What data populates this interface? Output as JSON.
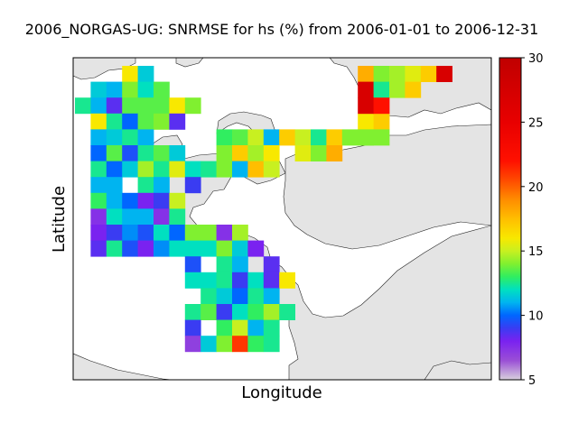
{
  "chart_data": {
    "type": "heatmap",
    "title": "2006_NORGAS-UG: SNRMSE for hs (%) from 2006-01-01 to 2006-12-31",
    "xlabel": "Longitude",
    "ylabel": "Latitude",
    "colorbar": {
      "min": 5,
      "max": 30,
      "ticks": [
        "5",
        "10",
        "15",
        "20",
        "25",
        "30"
      ]
    },
    "grid": {
      "cols": 25,
      "rows": 19,
      "cells": [
        {
          "c": 3,
          "r": 0,
          "v": 16
        },
        {
          "c": 4,
          "r": 0,
          "v": 11.5
        },
        {
          "c": 1,
          "r": 1,
          "v": 11.5
        },
        {
          "c": 2,
          "r": 1,
          "v": 11
        },
        {
          "c": 3,
          "r": 1,
          "v": 14
        },
        {
          "c": 4,
          "r": 1,
          "v": 12
        },
        {
          "c": 5,
          "r": 1,
          "v": 13.5
        },
        {
          "c": 0,
          "r": 2,
          "v": 12.5
        },
        {
          "c": 1,
          "r": 2,
          "v": 11
        },
        {
          "c": 2,
          "r": 2,
          "v": 8.5
        },
        {
          "c": 3,
          "r": 2,
          "v": 13.5
        },
        {
          "c": 4,
          "r": 2,
          "v": 13.5
        },
        {
          "c": 5,
          "r": 2,
          "v": 13.5
        },
        {
          "c": 6,
          "r": 2,
          "v": 16
        },
        {
          "c": 7,
          "r": 2,
          "v": 14
        },
        {
          "c": 1,
          "r": 3,
          "v": 16
        },
        {
          "c": 2,
          "r": 3,
          "v": 12.5
        },
        {
          "c": 3,
          "r": 3,
          "v": 10
        },
        {
          "c": 4,
          "r": 3,
          "v": 13.5
        },
        {
          "c": 5,
          "r": 3,
          "v": 14
        },
        {
          "c": 6,
          "r": 3,
          "v": 8.5
        },
        {
          "c": 1,
          "r": 4,
          "v": 11
        },
        {
          "c": 2,
          "r": 4,
          "v": 11.5
        },
        {
          "c": 3,
          "r": 4,
          "v": 12.5
        },
        {
          "c": 4,
          "r": 4,
          "v": 11
        },
        {
          "c": 9,
          "r": 4,
          "v": 13
        },
        {
          "c": 10,
          "r": 4,
          "v": 13.5
        },
        {
          "c": 11,
          "r": 4,
          "v": 15
        },
        {
          "c": 12,
          "r": 4,
          "v": 11
        },
        {
          "c": 13,
          "r": 4,
          "v": 17
        },
        {
          "c": 14,
          "r": 4,
          "v": 15
        },
        {
          "c": 15,
          "r": 4,
          "v": 12.5
        },
        {
          "c": 16,
          "r": 4,
          "v": 17
        },
        {
          "c": 17,
          "r": 4,
          "v": 14
        },
        {
          "c": 18,
          "r": 4,
          "v": 14
        },
        {
          "c": 1,
          "r": 5,
          "v": 10
        },
        {
          "c": 2,
          "r": 5,
          "v": 13.5
        },
        {
          "c": 3,
          "r": 5,
          "v": 9.5
        },
        {
          "c": 4,
          "r": 5,
          "v": 12.5
        },
        {
          "c": 5,
          "r": 5,
          "v": 13.5
        },
        {
          "c": 6,
          "r": 5,
          "v": 11.5
        },
        {
          "c": 9,
          "r": 5,
          "v": 14
        },
        {
          "c": 10,
          "r": 5,
          "v": 17
        },
        {
          "c": 11,
          "r": 5,
          "v": 14.5
        },
        {
          "c": 12,
          "r": 5,
          "v": 16
        },
        {
          "c": 14,
          "r": 5,
          "v": 15.5
        },
        {
          "c": 15,
          "r": 5,
          "v": 14
        },
        {
          "c": 16,
          "r": 5,
          "v": 18
        },
        {
          "c": 1,
          "r": 6,
          "v": 12.5
        },
        {
          "c": 2,
          "r": 6,
          "v": 10
        },
        {
          "c": 3,
          "r": 6,
          "v": 11.5
        },
        {
          "c": 4,
          "r": 6,
          "v": 14.5
        },
        {
          "c": 5,
          "r": 6,
          "v": 12.5
        },
        {
          "c": 6,
          "r": 6,
          "v": 15.5
        },
        {
          "c": 7,
          "r": 6,
          "v": 12
        },
        {
          "c": 8,
          "r": 6,
          "v": 12.5
        },
        {
          "c": 9,
          "r": 6,
          "v": 14
        },
        {
          "c": 10,
          "r": 6,
          "v": 11
        },
        {
          "c": 11,
          "r": 6,
          "v": 17.5
        },
        {
          "c": 12,
          "r": 6,
          "v": 15
        },
        {
          "c": 1,
          "r": 7,
          "v": 11
        },
        {
          "c": 2,
          "r": 7,
          "v": 11
        },
        {
          "c": 4,
          "r": 7,
          "v": 12.5
        },
        {
          "c": 5,
          "r": 7,
          "v": 11
        },
        {
          "c": 7,
          "r": 7,
          "v": 9
        },
        {
          "c": 1,
          "r": 8,
          "v": 13
        },
        {
          "c": 2,
          "r": 8,
          "v": 11
        },
        {
          "c": 3,
          "r": 8,
          "v": 10
        },
        {
          "c": 4,
          "r": 8,
          "v": 8
        },
        {
          "c": 5,
          "r": 8,
          "v": 9
        },
        {
          "c": 6,
          "r": 8,
          "v": 15
        },
        {
          "c": 1,
          "r": 9,
          "v": 7.5
        },
        {
          "c": 2,
          "r": 9,
          "v": 12
        },
        {
          "c": 3,
          "r": 9,
          "v": 11
        },
        {
          "c": 4,
          "r": 9,
          "v": 11
        },
        {
          "c": 5,
          "r": 9,
          "v": 7.5
        },
        {
          "c": 6,
          "r": 9,
          "v": 12.5
        },
        {
          "c": 1,
          "r": 10,
          "v": 8
        },
        {
          "c": 2,
          "r": 10,
          "v": 9
        },
        {
          "c": 3,
          "r": 10,
          "v": 10.5
        },
        {
          "c": 4,
          "r": 10,
          "v": 9.5
        },
        {
          "c": 5,
          "r": 10,
          "v": 12
        },
        {
          "c": 6,
          "r": 10,
          "v": 10
        },
        {
          "c": 7,
          "r": 10,
          "v": 14
        },
        {
          "c": 8,
          "r": 10,
          "v": 14
        },
        {
          "c": 9,
          "r": 10,
          "v": 7.5
        },
        {
          "c": 10,
          "r": 10,
          "v": 14.5
        },
        {
          "c": 1,
          "r": 11,
          "v": 8.5
        },
        {
          "c": 2,
          "r": 11,
          "v": 12.5
        },
        {
          "c": 3,
          "r": 11,
          "v": 9.5
        },
        {
          "c": 4,
          "r": 11,
          "v": 8
        },
        {
          "c": 5,
          "r": 11,
          "v": 10.5
        },
        {
          "c": 6,
          "r": 11,
          "v": 12
        },
        {
          "c": 7,
          "r": 11,
          "v": 12
        },
        {
          "c": 8,
          "r": 11,
          "v": 12
        },
        {
          "c": 9,
          "r": 11,
          "v": 14
        },
        {
          "c": 10,
          "r": 11,
          "v": 11.5
        },
        {
          "c": 11,
          "r": 11,
          "v": 8
        },
        {
          "c": 7,
          "r": 12,
          "v": 9.5
        },
        {
          "c": 9,
          "r": 12,
          "v": 12.5
        },
        {
          "c": 10,
          "r": 12,
          "v": 11
        },
        {
          "c": 12,
          "r": 12,
          "v": 8.5
        },
        {
          "c": 7,
          "r": 13,
          "v": 12
        },
        {
          "c": 8,
          "r": 13,
          "v": 12
        },
        {
          "c": 9,
          "r": 13,
          "v": 12.5
        },
        {
          "c": 10,
          "r": 13,
          "v": 9
        },
        {
          "c": 11,
          "r": 13,
          "v": 12
        },
        {
          "c": 12,
          "r": 13,
          "v": 8.5
        },
        {
          "c": 13,
          "r": 13,
          "v": 16
        },
        {
          "c": 8,
          "r": 14,
          "v": 12.5
        },
        {
          "c": 9,
          "r": 14,
          "v": 11.5
        },
        {
          "c": 10,
          "r": 14,
          "v": 10
        },
        {
          "c": 11,
          "r": 14,
          "v": 12.5
        },
        {
          "c": 12,
          "r": 14,
          "v": 11
        },
        {
          "c": 7,
          "r": 15,
          "v": 12.5
        },
        {
          "c": 8,
          "r": 15,
          "v": 13.5
        },
        {
          "c": 9,
          "r": 15,
          "v": 9
        },
        {
          "c": 10,
          "r": 15,
          "v": 12
        },
        {
          "c": 11,
          "r": 15,
          "v": 13
        },
        {
          "c": 12,
          "r": 15,
          "v": 14.5
        },
        {
          "c": 13,
          "r": 15,
          "v": 12.5
        },
        {
          "c": 7,
          "r": 16,
          "v": 9
        },
        {
          "c": 9,
          "r": 16,
          "v": 13
        },
        {
          "c": 10,
          "r": 16,
          "v": 15
        },
        {
          "c": 11,
          "r": 16,
          "v": 11
        },
        {
          "c": 12,
          "r": 16,
          "v": 12.5
        },
        {
          "c": 7,
          "r": 17,
          "v": 7
        },
        {
          "c": 8,
          "r": 17,
          "v": 11.5
        },
        {
          "c": 9,
          "r": 17,
          "v": 14
        },
        {
          "c": 10,
          "r": 17,
          "v": 21
        },
        {
          "c": 11,
          "r": 17,
          "v": 13
        },
        {
          "c": 12,
          "r": 17,
          "v": 12.5
        },
        {
          "c": 18,
          "r": 3,
          "v": 16
        },
        {
          "c": 19,
          "r": 3,
          "v": 17
        },
        {
          "c": 18,
          "r": 4,
          "v": 14
        },
        {
          "c": 19,
          "r": 4,
          "v": 14
        },
        {
          "c": 18,
          "r": 0,
          "v": 18
        },
        {
          "c": 19,
          "r": 0,
          "v": 14
        },
        {
          "c": 20,
          "r": 0,
          "v": 14.5
        },
        {
          "c": 21,
          "r": 0,
          "v": 15.5
        },
        {
          "c": 22,
          "r": 0,
          "v": 17
        },
        {
          "c": 23,
          "r": 0,
          "v": 27
        },
        {
          "c": 18,
          "r": 1,
          "v": 27
        },
        {
          "c": 19,
          "r": 1,
          "v": 12.5
        },
        {
          "c": 20,
          "r": 1,
          "v": 14.5
        },
        {
          "c": 21,
          "r": 1,
          "v": 17
        },
        {
          "c": 18,
          "r": 2,
          "v": 27
        },
        {
          "c": 19,
          "r": 2,
          "v": 22
        }
      ]
    }
  }
}
